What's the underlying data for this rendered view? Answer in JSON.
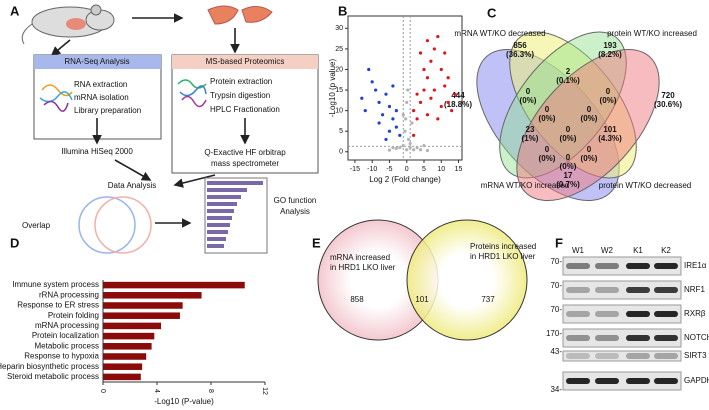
{
  "panel_labels": [
    "A",
    "B",
    "C",
    "D",
    "E",
    "F"
  ],
  "panel_a": {
    "rna_title": "RNA-Seq Analysis",
    "rna_steps": [
      "RNA extraction",
      "mRNA isolation",
      "Library preparation"
    ],
    "rna_platform": "Illumina HiSeq 2000",
    "ms_title": "MS-based Proteomics",
    "ms_steps": [
      "Protein extraction",
      "Trypsin digestion",
      "HPLC Fractionation"
    ],
    "ms_platform": [
      "Q-Exactive HF orbitrap",
      "mass spectrometer"
    ],
    "data_analysis": "Data Analysis",
    "overlap": "Overlap",
    "go": [
      "GO function",
      "Analysis"
    ]
  },
  "chart_data": [
    {
      "type": "scatter",
      "x_label": "Log 2 (Fold change)",
      "y_label": "-Log10 (p value)",
      "xlim": [
        -17,
        16
      ],
      "ylim": [
        -2,
        33
      ],
      "xticks": [
        -15,
        -10,
        -5,
        0,
        5,
        10,
        15
      ],
      "yticks": [
        0,
        5,
        10,
        15,
        20,
        25,
        30
      ],
      "thresholds": {
        "x": [
          -1,
          1
        ],
        "y": 1.3
      },
      "series": [
        {
          "color": "#b3b3b3",
          "x": [
            0,
            1,
            -1,
            0.5,
            -0.5,
            1.5,
            -1,
            0,
            1,
            -2,
            2,
            3,
            -3,
            4,
            -4,
            0.3,
            -0.3,
            5,
            6,
            -5
          ],
          "values": [
            0.5,
            1,
            1.5,
            3,
            5,
            7,
            9,
            12,
            2,
            1,
            0.5,
            1,
            0.8,
            0.5,
            1,
            15,
            8,
            1.5,
            0.3,
            0.4
          ]
        },
        {
          "color": "#1f3fd0",
          "x": [
            -10,
            -9,
            -8,
            -12,
            -7,
            -6,
            -5,
            -4,
            -3,
            -5,
            -8,
            -13,
            -3,
            -2,
            -6,
            -11,
            -4
          ],
          "values": [
            17,
            15,
            12,
            10,
            9,
            14,
            11,
            8,
            6,
            5,
            7,
            13,
            10,
            4,
            3,
            20,
            16
          ]
        },
        {
          "color": "#e0141a",
          "x": [
            2,
            3,
            4,
            5,
            6,
            7,
            8,
            9,
            10,
            11,
            12,
            13,
            3,
            5,
            6,
            8,
            4,
            7,
            9,
            11,
            14,
            2,
            6,
            10,
            12
          ],
          "values": [
            4,
            8,
            12,
            15,
            18,
            22,
            25,
            28,
            20,
            16,
            12,
            10,
            14,
            20,
            9,
            15,
            24,
            13,
            8,
            24,
            14,
            10,
            27,
            11,
            18
          ]
        }
      ]
    },
    {
      "type": "hbar",
      "x_label": "-Log10 (P-value)",
      "categories": [
        "Immune system process",
        "rRNA processing",
        "Response to ER stress",
        "Protein folding",
        "mRNA processing",
        "Protein localization",
        "Metabolic process",
        "Response to hypoxia",
        "Heparin biosynthetic process",
        "Steroid metabolic process"
      ],
      "values": [
        10.5,
        7.3,
        5.9,
        5.7,
        4.3,
        3.8,
        3.6,
        3.2,
        2.9,
        2.8
      ],
      "color": "#8b0a0a",
      "xlim": [
        0,
        12
      ],
      "xticks": [
        0,
        4,
        8,
        12
      ]
    }
  ],
  "panel_c": {
    "sets": [
      {
        "label": "mRNA WT/KO decreased",
        "color": "#2020d0"
      },
      {
        "label": "protein WT/KO increased",
        "color": "#e01010"
      },
      {
        "label": "mRNA WT/KO increased",
        "color": "#e01010"
      },
      {
        "label": "protein WT/KO decreased",
        "color": "#2020d0"
      }
    ],
    "regions": [
      {
        "count": 856,
        "percent": "(36.3%)"
      },
      {
        "count": 193,
        "percent": "(8.2%)"
      },
      {
        "count": 444,
        "percent": "(18.8%)"
      },
      {
        "count": 720,
        "percent": "(30.6%)"
      },
      {
        "count": 0,
        "percent": "(0%)"
      },
      {
        "count": 2,
        "percent": "(0.1%)"
      },
      {
        "count": 0,
        "percent": "(0%)"
      },
      {
        "count": 0,
        "percent": "(0%)"
      },
      {
        "count": 0,
        "percent": "(0%)"
      },
      {
        "count": 23,
        "percent": "(1%)"
      },
      {
        "count": 0,
        "percent": "(0%)"
      },
      {
        "count": 101,
        "percent": "(4.3%)"
      },
      {
        "count": 0,
        "percent": "(0%)"
      },
      {
        "count": 0,
        "percent": "(0%)"
      },
      {
        "count": 0,
        "percent": "(0%)"
      },
      {
        "count": 17,
        "percent": "(0.7%)"
      }
    ]
  },
  "panel_e": {
    "left_label": [
      "mRNA  increased",
      "in HRD1 LKO liver"
    ],
    "right_label": [
      "Proteins increased",
      "in HRD1 LKO liver"
    ],
    "left_only": 858,
    "both": 101,
    "right_only": 737
  },
  "panel_f": {
    "lanes": [
      "W1",
      "W2",
      "K1",
      "K2"
    ],
    "rows": [
      {
        "protein": "IRE1α",
        "marker": "70-"
      },
      {
        "protein": "NRF1",
        "marker": "70-"
      },
      {
        "protein": "RXRβ",
        "marker": "70-"
      },
      {
        "protein": "NOTCH1",
        "marker": "170-"
      },
      {
        "protein": "SIRT3",
        "marker": "43-"
      },
      {
        "protein": "GAPDH",
        "marker": "34-"
      }
    ]
  }
}
